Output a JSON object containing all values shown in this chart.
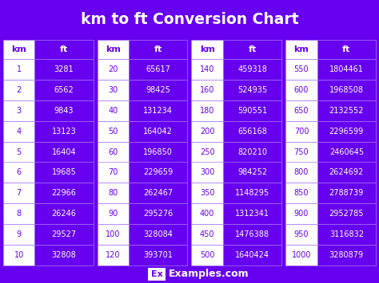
{
  "title": "km to ft Conversion Chart",
  "bg_color": "#6600ee",
  "cell_purple": "#6600ee",
  "cell_white": "#ffffff",
  "text_purple": "#6600ee",
  "text_white": "#ffffff",
  "columns": [
    {
      "km": [
        1,
        2,
        3,
        4,
        5,
        6,
        7,
        8,
        9,
        10
      ],
      "ft": [
        3281,
        6562,
        9843,
        13123,
        16404,
        19685,
        22966,
        26246,
        29527,
        32808
      ]
    },
    {
      "km": [
        20,
        30,
        40,
        50,
        60,
        70,
        80,
        90,
        100,
        120
      ],
      "ft": [
        65617,
        98425,
        131234,
        164042,
        196850,
        229659,
        262467,
        295276,
        328084,
        393701
      ]
    },
    {
      "km": [
        140,
        160,
        180,
        200,
        250,
        300,
        350,
        400,
        450,
        500
      ],
      "ft": [
        459318,
        524935,
        590551,
        656168,
        820210,
        984252,
        1148295,
        1312341,
        1476388,
        1640424
      ]
    },
    {
      "km": [
        550,
        600,
        650,
        700,
        750,
        800,
        850,
        900,
        950,
        1000
      ],
      "ft": [
        1804461,
        1968508,
        2132552,
        2296599,
        2460645,
        2624692,
        2788739,
        2952785,
        3116832,
        3280879
      ]
    }
  ],
  "footer_ex": "Ex",
  "footer_text": "Examples.com"
}
